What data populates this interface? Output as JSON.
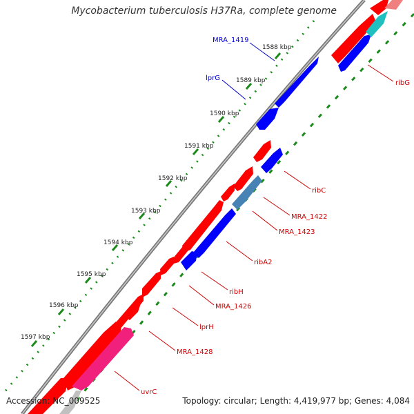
{
  "title": "Mycobacterium tuberculosis H37Ra, complete genome",
  "accession_text": "Accession: NC_009525",
  "summary_text": "Topology: circular; Length: 4,419,977 bp; Genes: 4,084",
  "colors": {
    "backbone": "#808080",
    "tick_dots": "#1a8a1a",
    "forward_gene": "#ff0000",
    "reverse_gene": "#0000ff",
    "steel_gene": "#4682b4",
    "cyan_gene": "#20c0c0",
    "pink_gene": "#f0207c",
    "light_pink_gene": "#f08080",
    "forward_label": "#cc0000",
    "reverse_label": "#0000cc"
  },
  "ticks": [
    "1588 kbp",
    "1589 kbp",
    "1590 kbp",
    "1591 kbp",
    "1592 kbp",
    "1593 kbp",
    "1594 kbp",
    "1595 kbp",
    "1596 kbp",
    "1597 kbp"
  ],
  "gene_labels": [
    {
      "name": "MRA_1419",
      "strand": "reverse"
    },
    {
      "name": "lprG",
      "strand": "reverse"
    },
    {
      "name": "ribG",
      "strand": "forward"
    },
    {
      "name": "ribC",
      "strand": "forward"
    },
    {
      "name": "MRA_1422",
      "strand": "forward"
    },
    {
      "name": "MRA_1423",
      "strand": "forward"
    },
    {
      "name": "ribA2",
      "strand": "forward"
    },
    {
      "name": "ribH",
      "strand": "forward"
    },
    {
      "name": "MRA_1426",
      "strand": "forward"
    },
    {
      "name": "lprH",
      "strand": "forward"
    },
    {
      "name": "MRA_1428",
      "strand": "forward"
    },
    {
      "name": "uvrC",
      "strand": "forward"
    }
  ]
}
